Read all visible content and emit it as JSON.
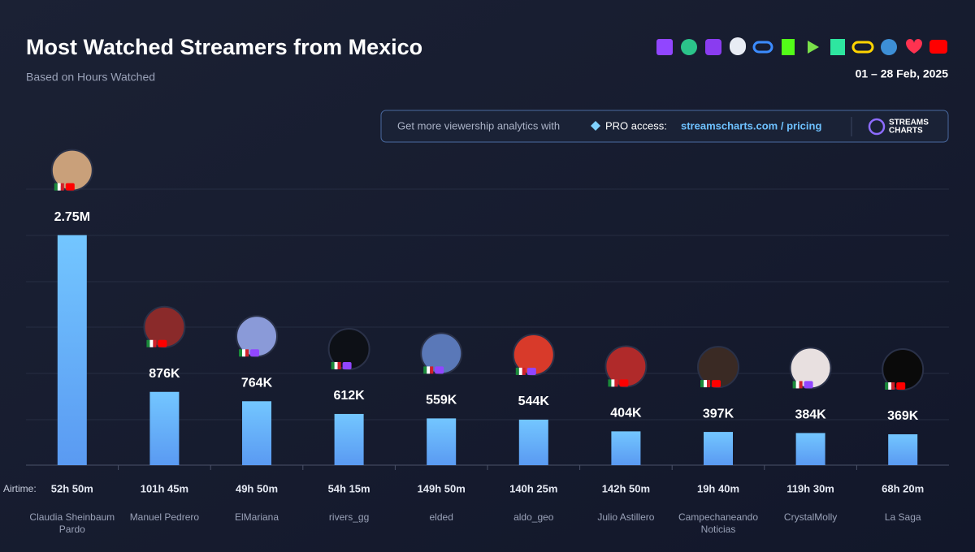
{
  "chart_data": {
    "type": "bar",
    "title": "Most Watched Streamers from Mexico",
    "subtitle": "Based on Hours Watched",
    "date_range": "01 – 28 Feb, 2025",
    "promo": {
      "text": "Get more viewership analytics with",
      "pro": "PRO access:",
      "link": "streamscharts.com / pricing",
      "logo_top": "STREAMS",
      "logo_bottom": "CHARTS"
    },
    "categories": [
      "Claudia Sheinbaum Pardo",
      "Manuel Pedrero",
      "ElMariana",
      "rivers_gg",
      "elded",
      "aldo_geo",
      "Julio Astillero",
      "Campechaneando Noticias",
      "CrystalMolly",
      "La Saga"
    ],
    "values": [
      2750000,
      876000,
      764000,
      612000,
      559000,
      544000,
      404000,
      397000,
      384000,
      369000
    ],
    "value_labels": [
      "2.75M",
      "876K",
      "764K",
      "612K",
      "559K",
      "544K",
      "404K",
      "397K",
      "384K",
      "369K"
    ],
    "airtime_label": "Airtime:",
    "airtime": [
      "52h 50m",
      "101h 45m",
      "49h 50m",
      "54h 15m",
      "149h 50m",
      "140h 25m",
      "142h 50m",
      "19h 40m",
      "119h 30m",
      "68h 20m"
    ],
    "color": "#6bbcff",
    "ylim": [
      0,
      3300000
    ]
  }
}
